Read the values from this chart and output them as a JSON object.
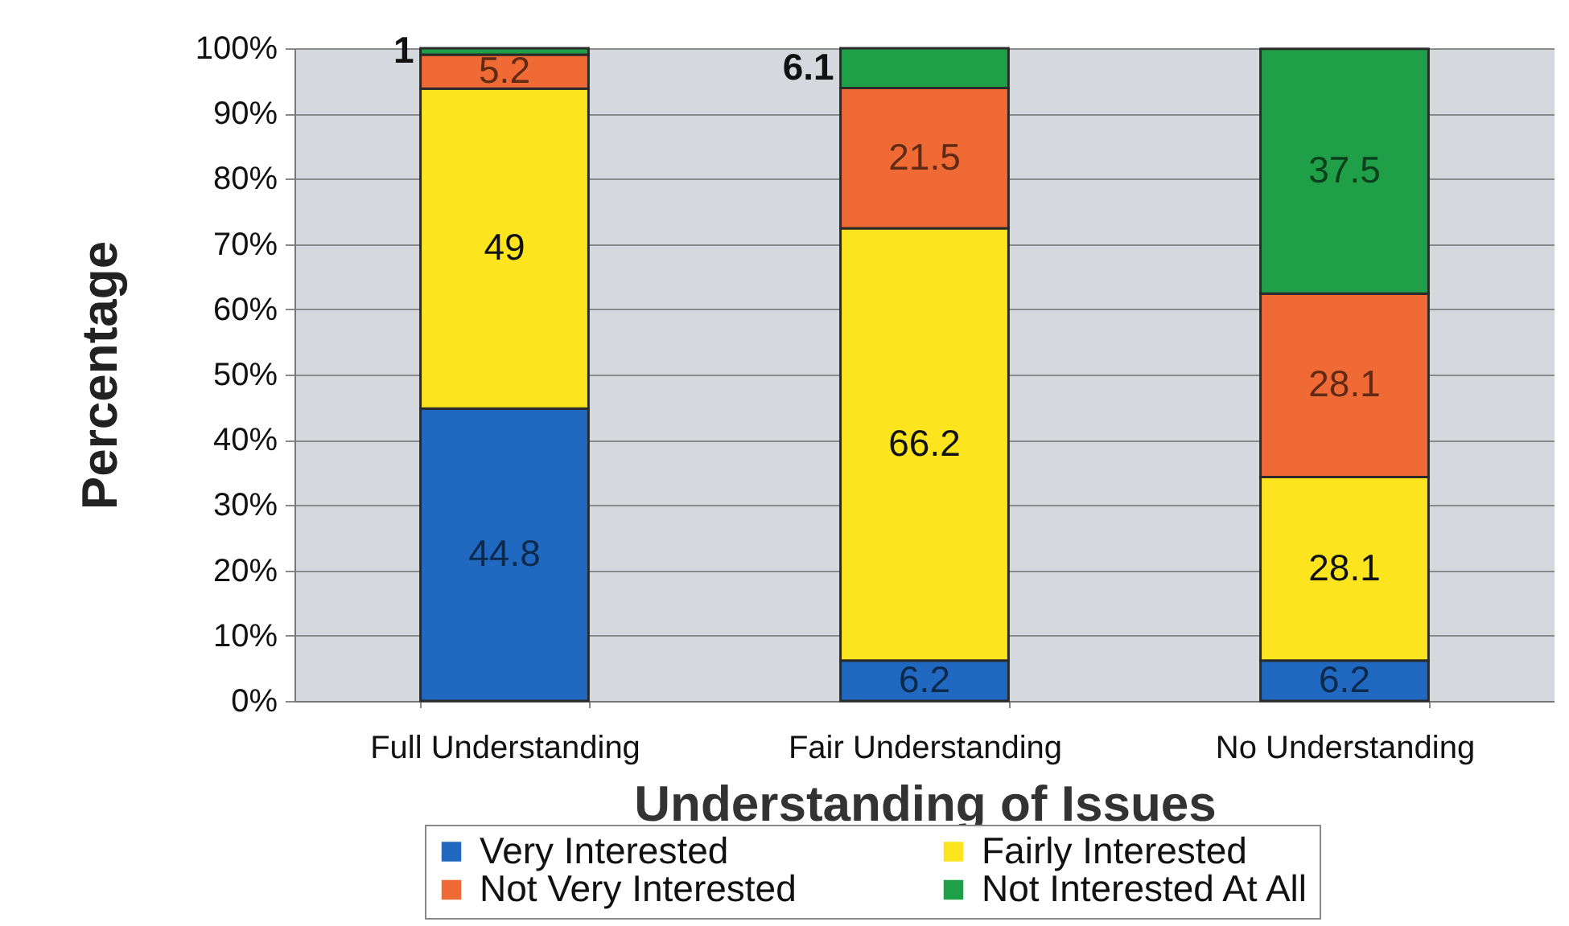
{
  "chart_data": {
    "type": "bar",
    "stacked": true,
    "xlabel": "Understanding of Issues",
    "ylabel": "Percentage",
    "categories": [
      "Full Understanding",
      "Fair Understanding",
      "No Understanding"
    ],
    "series": [
      {
        "name": "Very Interested",
        "color": "#2068c0",
        "values": [
          44.8,
          6.2,
          6.2
        ]
      },
      {
        "name": "Fairly Interested",
        "color": "#fce51e",
        "values": [
          49,
          66.2,
          28.1
        ]
      },
      {
        "name": "Not Very Interested",
        "color": "#f06a35",
        "values": [
          5.2,
          21.5,
          28.1
        ]
      },
      {
        "name": "Not Interested At All",
        "color": "#1fa048",
        "values": [
          1,
          6.1,
          37.5
        ]
      }
    ],
    "ylim": [
      0,
      100
    ],
    "yticks": [
      {
        "value": 0,
        "label": "0%"
      },
      {
        "value": 10,
        "label": "10%"
      },
      {
        "value": 20,
        "label": "20%"
      },
      {
        "value": 30,
        "label": "30%"
      },
      {
        "value": 40,
        "label": "40%"
      },
      {
        "value": 50,
        "label": "50%"
      },
      {
        "value": 60,
        "label": "60%"
      },
      {
        "value": 70,
        "label": "70%"
      },
      {
        "value": 80,
        "label": "80%"
      },
      {
        "value": 90,
        "label": "90%"
      },
      {
        "value": 100,
        "label": "100%"
      }
    ],
    "grid": "y",
    "legend": "bottom",
    "data_labels": true
  }
}
